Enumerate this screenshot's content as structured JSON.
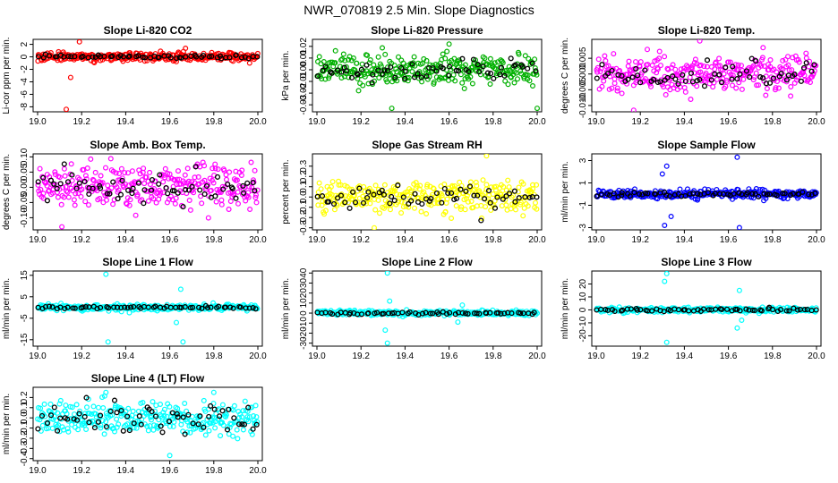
{
  "figure_title": "NWR_070819  2.5 Min. Slope Diagnostics",
  "chart_data": [
    {
      "type": "scatter",
      "title": "Slope Li-820 CO2",
      "ylabel": "Li-cor ppm per min.",
      "xlim": [
        19.0,
        20.0
      ],
      "ylim": [
        -8.8,
        2.8
      ],
      "xticks": [
        "19.0",
        "19.2",
        "19.4",
        "19.6",
        "19.8",
        "20.0"
      ],
      "yticks": [
        -8,
        -6,
        -4,
        -2,
        0,
        2
      ],
      "yticklabels": [
        "-8",
        "-6",
        "-4",
        "-2",
        "0",
        "2"
      ],
      "primary_color": "#ff0000",
      "secondary_color": "#000000",
      "spread": 0.45,
      "sec_spread": 0.2,
      "spikes": [
        [
          19.13,
          -8.4
        ],
        [
          19.15,
          -3.3
        ],
        [
          19.19,
          2.4
        ]
      ]
    },
    {
      "type": "scatter",
      "title": "Slope Li-820 Pressure",
      "ylabel": "kPa per min.",
      "xlim": [
        19.0,
        20.0
      ],
      "ylim": [
        -0.036,
        0.026
      ],
      "xticks": [
        "19.0",
        "19.2",
        "19.4",
        "19.6",
        "19.8",
        "20.0"
      ],
      "yticks": [
        -0.03,
        -0.02,
        -0.01,
        0,
        0.01,
        0.02
      ],
      "yticklabels": [
        "-0.03",
        "-0.02",
        "-0.01",
        "0.00",
        "0.01",
        "0.02"
      ],
      "primary_color": "#00b000",
      "secondary_color": "#000000",
      "spread": 0.008,
      "sec_spread": 0.006,
      "spikes": [
        [
          19.34,
          -0.033
        ],
        [
          20.0,
          -0.033
        ],
        [
          19.6,
          0.022
        ]
      ]
    },
    {
      "type": "scatter",
      "title": "Slope Li-820 Temp.",
      "ylabel": "degrees C per min.",
      "xlim": [
        19.0,
        20.0
      ],
      "ylim": [
        -0.012,
        0.011
      ],
      "xticks": [
        "19.0",
        "19.2",
        "19.4",
        "19.6",
        "19.8",
        "20.0"
      ],
      "yticks": [
        -0.01,
        -0.005,
        0,
        0.005
      ],
      "yticklabels": [
        "-0.010",
        "-0.005",
        "0.000",
        "0.005"
      ],
      "primary_color": "#ff00ff",
      "secondary_color": "#000000",
      "spread": 0.0035,
      "sec_spread": 0.003,
      "spikes": [
        [
          19.47,
          0.0105
        ],
        [
          19.17,
          -0.0115
        ]
      ]
    },
    {
      "type": "scatter",
      "title": "Slope Amb. Box Temp.",
      "ylabel": "degrees C per min.",
      "xlim": [
        19.0,
        20.0
      ],
      "ylim": [
        -0.14,
        0.11
      ],
      "xticks": [
        "19.0",
        "19.2",
        "19.4",
        "19.6",
        "19.8",
        "20.0"
      ],
      "yticks": [
        -0.1,
        -0.05,
        0,
        0.05,
        0.1
      ],
      "yticklabels": [
        "-0.10",
        "-0.05",
        "0.00",
        "0.05",
        "0.10"
      ],
      "primary_color": "#ff00ff",
      "secondary_color": "#000000",
      "spread": 0.045,
      "sec_spread": 0.035,
      "spikes": [
        [
          19.11,
          -0.13
        ]
      ]
    },
    {
      "type": "scatter",
      "title": "Slope Gas Stream RH",
      "ylabel": "percent per min.",
      "xlim": [
        19.0,
        20.0
      ],
      "ylim": [
        -0.32,
        0.42
      ],
      "xticks": [
        "19.0",
        "19.2",
        "19.4",
        "19.6",
        "19.8",
        "20.0"
      ],
      "yticks": [
        -0.3,
        -0.2,
        -0.1,
        0,
        0.1,
        0.2,
        0.3
      ],
      "yticklabels": [
        "-0.3",
        "-0.2",
        "-0.1",
        "0.0",
        "0.1",
        "0.2",
        "0.3"
      ],
      "primary_color": "#ffff00",
      "secondary_color": "#000000",
      "spread": 0.1,
      "sec_spread": 0.09,
      "spikes": [
        [
          19.77,
          0.4
        ],
        [
          19.26,
          -0.3
        ]
      ]
    },
    {
      "type": "scatter",
      "title": "Slope Sample Flow",
      "ylabel": "ml/min per min.",
      "xlim": [
        19.0,
        20.0
      ],
      "ylim": [
        -3.2,
        3.6
      ],
      "xticks": [
        "19.0",
        "19.2",
        "19.4",
        "19.6",
        "19.8",
        "20.0"
      ],
      "yticks": [
        -3,
        -1,
        1,
        3
      ],
      "yticklabels": [
        "-3",
        "-1",
        "1",
        "3"
      ],
      "primary_color": "#0000ff",
      "secondary_color": "#000000",
      "spread": 0.25,
      "sec_spread": 0.15,
      "spikes": [
        [
          19.32,
          2.5
        ],
        [
          19.31,
          -2.8
        ],
        [
          19.64,
          3.3
        ],
        [
          19.65,
          -3.0
        ],
        [
          19.3,
          1.8
        ],
        [
          19.34,
          -2.0
        ]
      ]
    },
    {
      "type": "scatter",
      "title": "Slope Line 1 Flow",
      "ylabel": "ml/min per min.",
      "xlim": [
        19.0,
        20.0
      ],
      "ylim": [
        -18,
        17
      ],
      "xticks": [
        "19.0",
        "19.2",
        "19.4",
        "19.6",
        "19.8",
        "20.0"
      ],
      "yticks": [
        -15,
        -5,
        5,
        15
      ],
      "yticklabels": [
        "-15",
        "-5",
        "5",
        "15"
      ],
      "primary_color": "#00ffff",
      "secondary_color": "#000000",
      "spread": 0.9,
      "sec_spread": 0.4,
      "spikes": [
        [
          19.31,
          15.5
        ],
        [
          19.32,
          -16
        ],
        [
          19.66,
          -16
        ],
        [
          19.65,
          8.5
        ],
        [
          19.63,
          -7
        ]
      ]
    },
    {
      "type": "scatter",
      "title": "Slope Line 2 Flow",
      "ylabel": "ml/min per min.",
      "xlim": [
        19.0,
        20.0
      ],
      "ylim": [
        -33,
        42
      ],
      "xticks": [
        "19.0",
        "19.2",
        "19.4",
        "19.6",
        "19.8",
        "20.0"
      ],
      "yticks": [
        -30,
        -20,
        -10,
        0,
        10,
        20,
        30,
        40
      ],
      "yticklabels": [
        "-30",
        "-20",
        "-10",
        "0",
        "10",
        "20",
        "30",
        "40"
      ],
      "primary_color": "#00ffff",
      "secondary_color": "#000000",
      "spread": 1.5,
      "sec_spread": 1.0,
      "spikes": [
        [
          19.32,
          40
        ],
        [
          19.32,
          -30
        ],
        [
          19.31,
          -17
        ],
        [
          19.64,
          -9
        ],
        [
          19.66,
          8
        ],
        [
          19.33,
          12
        ]
      ]
    },
    {
      "type": "scatter",
      "title": "Slope Line 3 Flow",
      "ylabel": "ml/min per min.",
      "xlim": [
        19.0,
        20.0
      ],
      "ylim": [
        -28,
        30
      ],
      "xticks": [
        "19.0",
        "19.2",
        "19.4",
        "19.6",
        "19.8",
        "20.0"
      ],
      "yticks": [
        -20,
        -10,
        0,
        10,
        20
      ],
      "yticklabels": [
        "-20",
        "-10",
        "0",
        "10",
        "20"
      ],
      "primary_color": "#00ffff",
      "secondary_color": "#000000",
      "spread": 1.2,
      "sec_spread": 0.8,
      "spikes": [
        [
          19.32,
          28
        ],
        [
          19.32,
          -25
        ],
        [
          19.31,
          22
        ],
        [
          19.64,
          -14
        ],
        [
          19.65,
          15
        ],
        [
          19.66,
          -8
        ]
      ]
    },
    {
      "type": "scatter",
      "title": "Slope Line 4 (LT) Flow",
      "ylabel": "ml/min per min.",
      "xlim": [
        19.0,
        20.0
      ],
      "ylim": [
        -0.42,
        0.3
      ],
      "xticks": [
        "19.0",
        "19.2",
        "19.4",
        "19.6",
        "19.8",
        "20.0"
      ],
      "yticks": [
        -0.4,
        -0.3,
        -0.2,
        -0.1,
        0,
        0.1,
        0.2
      ],
      "yticklabels": [
        "-0.4",
        "-0.3",
        "-0.2",
        "-0.1",
        "0.0",
        "0.1",
        "0.2"
      ],
      "primary_color": "#00ffff",
      "secondary_color": "#000000",
      "spread": 0.1,
      "sec_spread": 0.1,
      "spikes": [
        [
          19.8,
          0.25
        ],
        [
          19.31,
          0.25
        ],
        [
          19.6,
          -0.37
        ]
      ]
    }
  ]
}
